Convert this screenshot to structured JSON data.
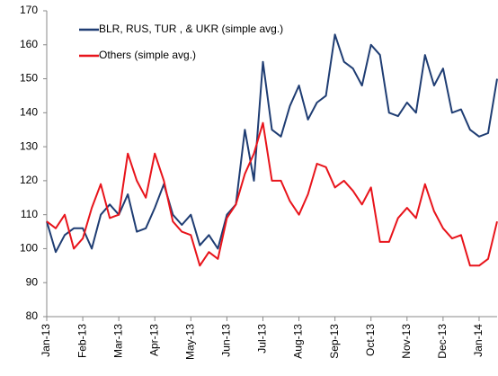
{
  "chart_data": {
    "type": "line",
    "categories": [
      "Jan-13",
      null,
      null,
      null,
      "Feb-13",
      null,
      null,
      null,
      "Mar-13",
      null,
      null,
      null,
      "Apr-13",
      null,
      null,
      null,
      "May-13",
      null,
      null,
      null,
      "Jun-13",
      null,
      null,
      null,
      "Jul-13",
      null,
      null,
      null,
      "Aug-13",
      null,
      null,
      null,
      "Sep-13",
      null,
      null,
      null,
      "Oct-13",
      null,
      null,
      null,
      "Nov-13",
      null,
      null,
      null,
      "Dec-13",
      null,
      null,
      null,
      "Jan-14",
      null,
      null
    ],
    "series": [
      {
        "name": "BLR, RUS, TUR , & UKR (simple avg.)",
        "color": "#1f3d73",
        "values": [
          108,
          99,
          104,
          106,
          106,
          100,
          110,
          113,
          110,
          116,
          105,
          106,
          112,
          119,
          110,
          107,
          110,
          101,
          104,
          100,
          110,
          113,
          135,
          120,
          155,
          135,
          133,
          142,
          148,
          138,
          143,
          145,
          163,
          155,
          153,
          148,
          160,
          157,
          140,
          139,
          143,
          140,
          157,
          148,
          153,
          140,
          141,
          135,
          133,
          134,
          150
        ]
      },
      {
        "name": "Others (simple avg.)",
        "color": "#e8141b",
        "values": [
          108,
          106,
          110,
          100,
          103,
          112,
          119,
          109,
          110,
          128,
          120,
          115,
          128,
          120,
          108,
          105,
          104,
          95,
          99,
          97,
          109,
          113,
          122,
          128,
          137,
          120,
          120,
          114,
          110,
          116,
          125,
          124,
          118,
          120,
          117,
          113,
          118,
          102,
          102,
          109,
          112,
          109,
          119,
          111,
          106,
          103,
          104,
          95,
          95,
          97,
          108
        ]
      }
    ],
    "ylim": [
      80,
      170
    ],
    "yticks": [
      80,
      90,
      100,
      110,
      120,
      130,
      140,
      150,
      160,
      170
    ],
    "legend": "upper left"
  }
}
